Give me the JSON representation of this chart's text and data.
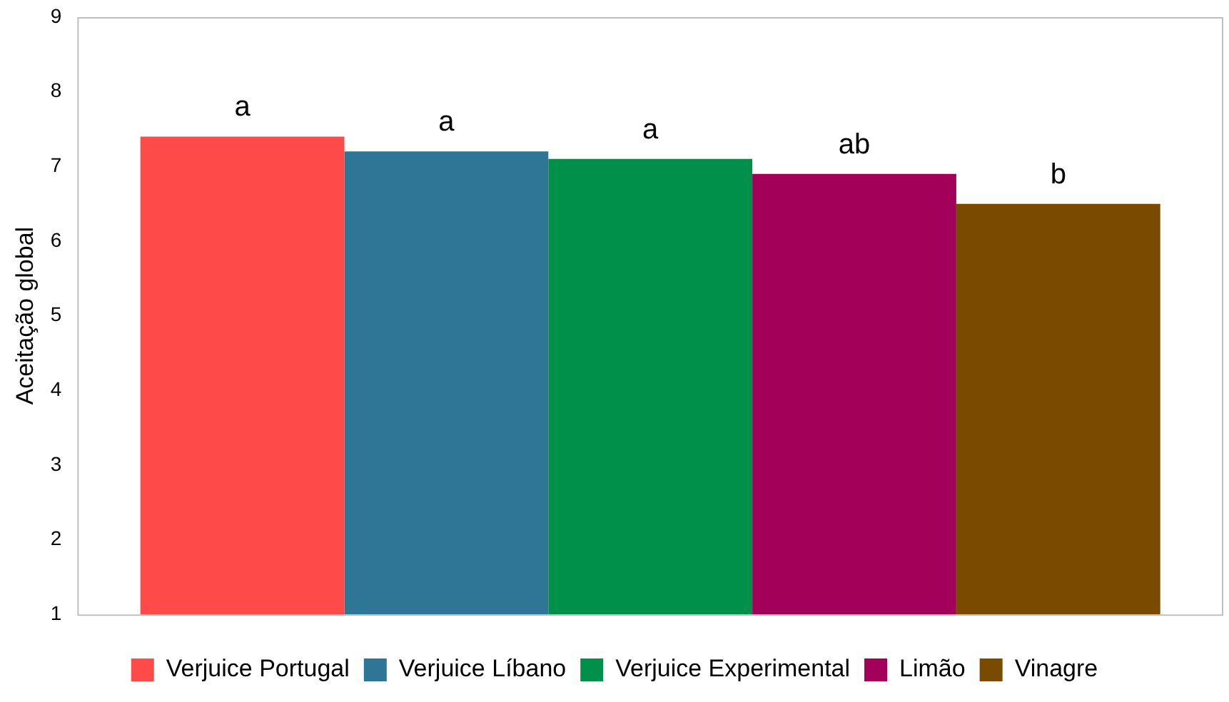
{
  "chart_data": {
    "type": "bar",
    "ylabel": "Aceitação global",
    "categories": [
      null
    ],
    "series": [
      {
        "name": "Verjuice Portugal",
        "color": "#ff4a4a",
        "values": [
          7.4
        ],
        "value_labels": [
          "a"
        ]
      },
      {
        "name": "Verjuice Líbano",
        "color": "#2e7596",
        "values": [
          7.2
        ],
        "value_labels": [
          "a"
        ]
      },
      {
        "name": "Verjuice Experimental",
        "color": "#00904a",
        "values": [
          7.1
        ],
        "value_labels": [
          "a"
        ]
      },
      {
        "name": "Limão",
        "color": "#a3005a",
        "values": [
          6.9
        ],
        "value_labels": [
          "ab"
        ]
      },
      {
        "name": "Vinagre",
        "color": "#7a4a00",
        "values": [
          6.5
        ],
        "value_labels": [
          "b"
        ]
      }
    ],
    "ylim": [
      1,
      9
    ],
    "yticks": [
      1,
      2,
      3,
      4,
      5,
      6,
      7,
      8,
      9
    ],
    "grid": false,
    "legend": "bottom"
  }
}
